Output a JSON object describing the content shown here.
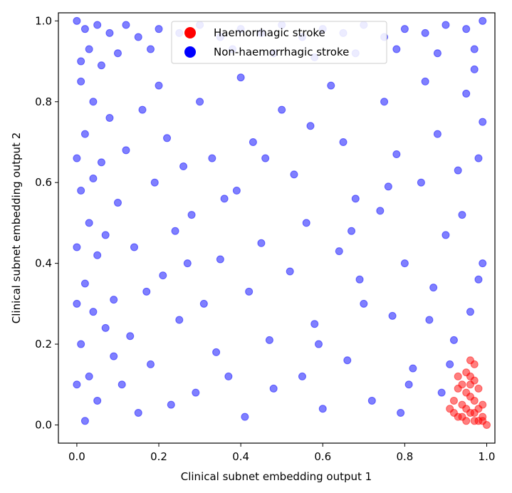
{
  "chart_data": {
    "type": "scatter",
    "xlabel": "Clinical subnet embedding output 1",
    "ylabel": "Clinical subnet embedding output 2",
    "xlim": [
      -0.045,
      1.02
    ],
    "ylim": [
      -0.045,
      1.02
    ],
    "x_ticks": [
      "0.0",
      "0.2",
      "0.4",
      "0.6",
      "0.8",
      "1.0"
    ],
    "y_ticks": [
      "0.0",
      "0.2",
      "0.4",
      "0.6",
      "0.8",
      "1.0"
    ],
    "x_tick_values": [
      0.0,
      0.2,
      0.4,
      0.6,
      0.8,
      1.0
    ],
    "y_tick_values": [
      0.0,
      0.2,
      0.4,
      0.6,
      0.8,
      1.0
    ],
    "grid": false,
    "legend_position": "top-center",
    "marker_alpha": 0.5,
    "series": [
      {
        "name": "Non-haemorrhagic stroke",
        "color": "#0000ff",
        "points": [
          [
            0.0,
            1.0
          ],
          [
            0.02,
            0.98
          ],
          [
            0.05,
            0.99
          ],
          [
            0.08,
            0.97
          ],
          [
            0.12,
            0.99
          ],
          [
            0.15,
            0.96
          ],
          [
            0.2,
            0.98
          ],
          [
            0.25,
            0.97
          ],
          [
            0.3,
            0.99
          ],
          [
            0.35,
            0.96
          ],
          [
            0.4,
            0.98
          ],
          [
            0.45,
            0.97
          ],
          [
            0.5,
            0.99
          ],
          [
            0.55,
            0.96
          ],
          [
            0.6,
            0.98
          ],
          [
            0.65,
            0.97
          ],
          [
            0.7,
            0.99
          ],
          [
            0.75,
            0.96
          ],
          [
            0.8,
            0.98
          ],
          [
            0.85,
            0.97
          ],
          [
            0.9,
            0.99
          ],
          [
            0.95,
            0.98
          ],
          [
            0.99,
            1.0
          ],
          [
            0.03,
            0.93
          ],
          [
            0.1,
            0.92
          ],
          [
            0.18,
            0.93
          ],
          [
            0.28,
            0.92
          ],
          [
            0.38,
            0.93
          ],
          [
            0.48,
            0.92
          ],
          [
            0.58,
            0.91
          ],
          [
            0.68,
            0.92
          ],
          [
            0.78,
            0.93
          ],
          [
            0.88,
            0.92
          ],
          [
            0.97,
            0.93
          ],
          [
            0.01,
            0.85
          ],
          [
            0.04,
            0.8
          ],
          [
            0.02,
            0.72
          ],
          [
            0.06,
            0.65
          ],
          [
            0.01,
            0.58
          ],
          [
            0.03,
            0.5
          ],
          [
            0.05,
            0.42
          ],
          [
            0.02,
            0.35
          ],
          [
            0.04,
            0.28
          ],
          [
            0.01,
            0.2
          ],
          [
            0.03,
            0.12
          ],
          [
            0.05,
            0.06
          ],
          [
            0.02,
            0.01
          ],
          [
            0.08,
            0.76
          ],
          [
            0.12,
            0.68
          ],
          [
            0.1,
            0.55
          ],
          [
            0.14,
            0.44
          ],
          [
            0.09,
            0.31
          ],
          [
            0.13,
            0.22
          ],
          [
            0.11,
            0.1
          ],
          [
            0.15,
            0.03
          ],
          [
            0.2,
            0.84
          ],
          [
            0.22,
            0.71
          ],
          [
            0.19,
            0.6
          ],
          [
            0.24,
            0.48
          ],
          [
            0.21,
            0.37
          ],
          [
            0.25,
            0.26
          ],
          [
            0.18,
            0.15
          ],
          [
            0.23,
            0.05
          ],
          [
            0.3,
            0.8
          ],
          [
            0.33,
            0.66
          ],
          [
            0.28,
            0.52
          ],
          [
            0.35,
            0.41
          ],
          [
            0.31,
            0.3
          ],
          [
            0.34,
            0.18
          ],
          [
            0.29,
            0.08
          ],
          [
            0.4,
            0.86
          ],
          [
            0.43,
            0.7
          ],
          [
            0.39,
            0.58
          ],
          [
            0.45,
            0.45
          ],
          [
            0.42,
            0.33
          ],
          [
            0.47,
            0.21
          ],
          [
            0.41,
            0.02
          ],
          [
            0.5,
            0.78
          ],
          [
            0.53,
            0.62
          ],
          [
            0.56,
            0.5
          ],
          [
            0.52,
            0.38
          ],
          [
            0.58,
            0.25
          ],
          [
            0.55,
            0.12
          ],
          [
            0.6,
            0.04
          ],
          [
            0.62,
            0.84
          ],
          [
            0.65,
            0.7
          ],
          [
            0.68,
            0.56
          ],
          [
            0.64,
            0.43
          ],
          [
            0.7,
            0.3
          ],
          [
            0.66,
            0.16
          ],
          [
            0.72,
            0.06
          ],
          [
            0.75,
            0.8
          ],
          [
            0.78,
            0.67
          ],
          [
            0.74,
            0.53
          ],
          [
            0.8,
            0.4
          ],
          [
            0.77,
            0.27
          ],
          [
            0.82,
            0.14
          ],
          [
            0.79,
            0.03
          ],
          [
            0.85,
            0.85
          ],
          [
            0.88,
            0.72
          ],
          [
            0.84,
            0.6
          ],
          [
            0.9,
            0.47
          ],
          [
            0.87,
            0.34
          ],
          [
            0.92,
            0.21
          ],
          [
            0.89,
            0.08
          ],
          [
            0.95,
            0.82
          ],
          [
            0.98,
            0.66
          ],
          [
            0.94,
            0.52
          ],
          [
            0.99,
            0.4
          ],
          [
            0.96,
            0.28
          ],
          [
            0.97,
            0.88
          ],
          [
            0.99,
            0.75
          ],
          [
            0.93,
            0.63
          ],
          [
            0.98,
            0.36
          ],
          [
            0.06,
            0.89
          ],
          [
            0.16,
            0.78
          ],
          [
            0.26,
            0.64
          ],
          [
            0.36,
            0.56
          ],
          [
            0.46,
            0.66
          ],
          [
            0.57,
            0.74
          ],
          [
            0.67,
            0.48
          ],
          [
            0.76,
            0.59
          ],
          [
            0.86,
            0.26
          ],
          [
            0.07,
            0.24
          ],
          [
            0.17,
            0.33
          ],
          [
            0.27,
            0.4
          ],
          [
            0.37,
            0.12
          ],
          [
            0.48,
            0.09
          ],
          [
            0.59,
            0.2
          ],
          [
            0.69,
            0.36
          ],
          [
            0.81,
            0.1
          ],
          [
            0.91,
            0.15
          ],
          [
            0.0,
            0.66
          ],
          [
            0.0,
            0.44
          ],
          [
            0.0,
            0.3
          ],
          [
            0.0,
            0.1
          ],
          [
            0.01,
            0.9
          ],
          [
            0.04,
            0.61
          ],
          [
            0.07,
            0.47
          ],
          [
            0.09,
            0.17
          ]
        ]
      },
      {
        "name": "Haemorrhagic stroke",
        "color": "#ff0000",
        "points": [
          [
            0.93,
            0.02
          ],
          [
            0.94,
            0.05
          ],
          [
            0.95,
            0.08
          ],
          [
            0.96,
            0.12
          ],
          [
            0.97,
            0.15
          ],
          [
            0.95,
            0.01
          ],
          [
            0.96,
            0.03
          ],
          [
            0.97,
            0.06
          ],
          [
            0.98,
            0.09
          ],
          [
            0.99,
            0.02
          ],
          [
            0.92,
            0.06
          ],
          [
            0.94,
            0.1
          ],
          [
            0.96,
            0.07
          ],
          [
            0.98,
            0.04
          ],
          [
            0.99,
            0.01
          ],
          [
            0.95,
            0.13
          ],
          [
            0.97,
            0.11
          ],
          [
            0.93,
            0.09
          ],
          [
            0.91,
            0.04
          ],
          [
            0.96,
            0.16
          ],
          [
            0.98,
            0.01
          ],
          [
            0.97,
            0.03
          ],
          [
            0.95,
            0.04
          ],
          [
            0.94,
            0.02
          ],
          [
            0.92,
            0.03
          ],
          [
            0.99,
            0.05
          ],
          [
            0.96,
            0.1
          ],
          [
            0.93,
            0.12
          ],
          [
            0.97,
            0.01
          ],
          [
            1.0,
            0.0
          ]
        ]
      }
    ]
  }
}
